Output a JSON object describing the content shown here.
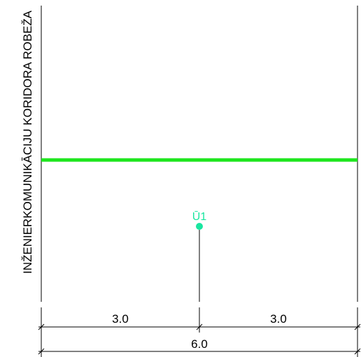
{
  "corridor_label": "INŽENIERKOMUNIKĀCIJU KORIDORA ROBEŽA",
  "point": {
    "label": "Ū1",
    "color": "#19e6a0"
  },
  "green_line": {
    "color": "#1ee61e"
  },
  "dimensions": {
    "left_segment": "3.0",
    "right_segment": "3.0",
    "total": "6.0"
  }
}
